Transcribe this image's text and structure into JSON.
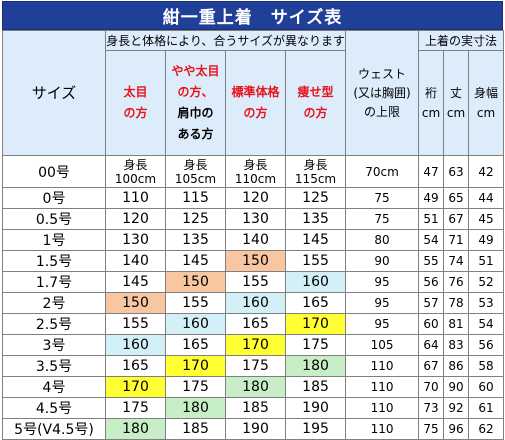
{
  "title": "紺一重上着　サイズ表",
  "header": {
    "size": "サイズ",
    "group_label": "身長と体格により、合うサイズが異なります",
    "cols": [
      {
        "lines": [
          "太目",
          "の方"
        ],
        "style": "red"
      },
      {
        "lines": [
          "やや太目",
          "の方、",
          "肩巾の",
          "ある方"
        ],
        "style": "mixed"
      },
      {
        "lines": [
          "標準体格",
          "の方"
        ],
        "style": "red"
      },
      {
        "lines": [
          "痩せ型",
          "の方"
        ],
        "style": "red"
      }
    ],
    "waist_lines": [
      "ウェスト",
      "(又は胸囲)",
      "の上限"
    ],
    "measure_group": "上着の実寸法",
    "measures": [
      {
        "label": "裄",
        "unit": "cm"
      },
      {
        "label": "丈",
        "unit": "cm"
      },
      {
        "label": "身幅",
        "unit": "cm"
      }
    ]
  },
  "first_row": {
    "name": "00号",
    "heights": [
      {
        "line1": "身長",
        "line2": "100cm"
      },
      {
        "line1": "身長",
        "line2": "105cm"
      },
      {
        "line1": "身長",
        "line2": "110cm"
      },
      {
        "line1": "身長",
        "line2": "115cm"
      }
    ],
    "waist": "70cm",
    "m": [
      "47",
      "63",
      "42"
    ]
  },
  "rows": [
    {
      "name": "0号",
      "h": [
        "110",
        "115",
        "120",
        "125"
      ],
      "hl": [
        "",
        "",
        "",
        ""
      ],
      "waist": "75",
      "m": [
        "49",
        "65",
        "44"
      ]
    },
    {
      "name": "0.5号",
      "h": [
        "120",
        "125",
        "130",
        "135"
      ],
      "hl": [
        "",
        "",
        "",
        ""
      ],
      "waist": "75",
      "m": [
        "51",
        "67",
        "45"
      ]
    },
    {
      "name": "1号",
      "h": [
        "130",
        "135",
        "140",
        "145"
      ],
      "hl": [
        "",
        "",
        "",
        ""
      ],
      "waist": "80",
      "m": [
        "54",
        "71",
        "49"
      ]
    },
    {
      "name": "1.5号",
      "h": [
        "140",
        "145",
        "150",
        "155"
      ],
      "hl": [
        "",
        "",
        "orange",
        ""
      ],
      "waist": "90",
      "m": [
        "55",
        "74",
        "51"
      ]
    },
    {
      "name": "1.7号",
      "h": [
        "145",
        "150",
        "155",
        "160"
      ],
      "hl": [
        "",
        "orange",
        "",
        "blue"
      ],
      "waist": "95",
      "m": [
        "56",
        "76",
        "52"
      ]
    },
    {
      "name": "2号",
      "h": [
        "150",
        "155",
        "160",
        "165"
      ],
      "hl": [
        "orange",
        "",
        "blue",
        ""
      ],
      "waist": "95",
      "m": [
        "57",
        "78",
        "53"
      ]
    },
    {
      "name": "2.5号",
      "h": [
        "155",
        "160",
        "165",
        "170"
      ],
      "hl": [
        "",
        "blue",
        "",
        "yellow"
      ],
      "waist": "95",
      "m": [
        "60",
        "81",
        "54"
      ]
    },
    {
      "name": "3号",
      "h": [
        "160",
        "165",
        "170",
        "175"
      ],
      "hl": [
        "blue",
        "",
        "yellow",
        ""
      ],
      "waist": "105",
      "m": [
        "64",
        "83",
        "56"
      ]
    },
    {
      "name": "3.5号",
      "h": [
        "165",
        "170",
        "175",
        "180"
      ],
      "hl": [
        "",
        "yellow",
        "",
        "green"
      ],
      "waist": "110",
      "m": [
        "67",
        "86",
        "58"
      ]
    },
    {
      "name": "4号",
      "h": [
        "170",
        "175",
        "180",
        "185"
      ],
      "hl": [
        "yellow",
        "",
        "green",
        ""
      ],
      "waist": "110",
      "m": [
        "70",
        "90",
        "60"
      ]
    },
    {
      "name": "4.5号",
      "h": [
        "175",
        "180",
        "185",
        "190"
      ],
      "hl": [
        "",
        "green",
        "",
        ""
      ],
      "waist": "110",
      "m": [
        "73",
        "92",
        "61"
      ]
    },
    {
      "name": "5号(V4.5号)",
      "h": [
        "180",
        "185",
        "190",
        "195"
      ],
      "hl": [
        "green",
        "",
        "",
        ""
      ],
      "waist": "110",
      "m": [
        "75",
        "96",
        "62"
      ]
    }
  ],
  "colors": {
    "title_bg": "#1f3f99",
    "header_bg": "#dcecfb",
    "red_text": "#e8141e",
    "orange": "#f8c7a2",
    "blue": "#d3f0f8",
    "yellow": "#ffff33",
    "green": "#c7eec7"
  }
}
